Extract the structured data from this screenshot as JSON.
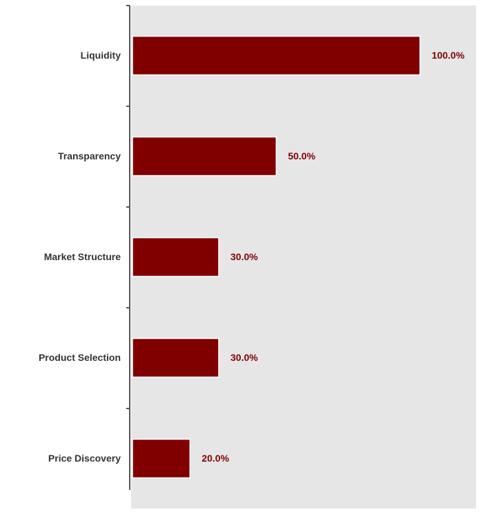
{
  "chart_data": {
    "type": "bar",
    "orientation": "horizontal",
    "categories": [
      "Liquidity",
      "Transparency",
      "Market Structure",
      "Product Selection",
      "Price Discovery"
    ],
    "values": [
      100,
      50,
      30,
      30,
      20
    ],
    "value_labels": [
      "100.0%",
      "50.0%",
      "30.0%",
      "30.0%",
      "20.0%"
    ],
    "color": "#800000",
    "xlim": [
      0,
      120
    ]
  }
}
